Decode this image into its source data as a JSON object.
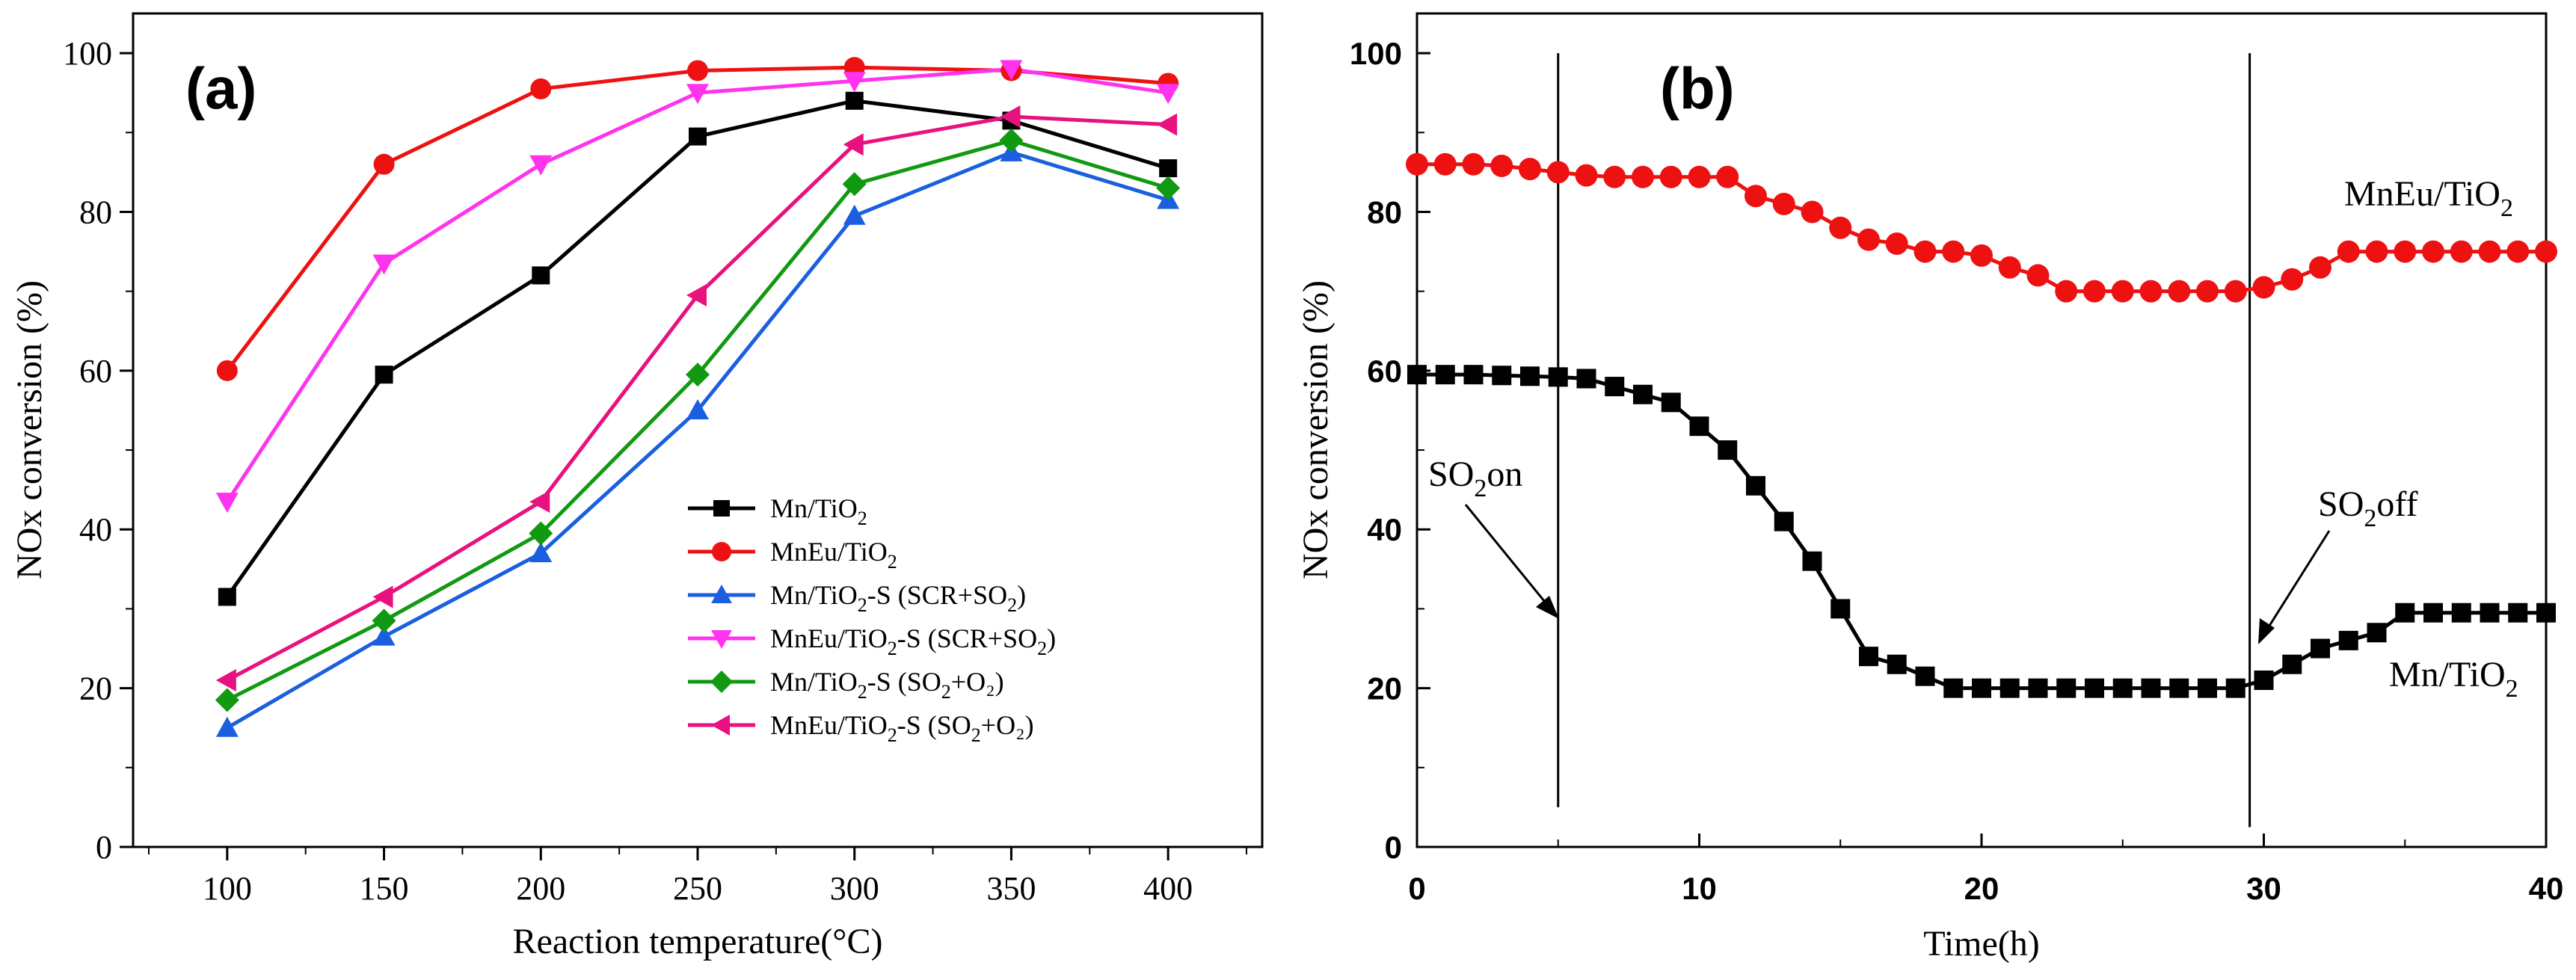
{
  "chart_data": [
    {
      "type": "line",
      "panel_label": "(a)",
      "xlabel": "Reaction temperature(°C)",
      "ylabel": "NOx conversion (%)",
      "xlim": [
        70,
        430
      ],
      "ylim": [
        0,
        105
      ],
      "x_ticks": [
        "100",
        "150",
        "200",
        "250",
        "300",
        "350",
        "400"
      ],
      "y_ticks": [
        "0",
        "20",
        "40",
        "60",
        "80",
        "100"
      ],
      "legend_position": "center-right",
      "x": [
        100,
        150,
        200,
        250,
        300,
        350,
        400
      ],
      "series": [
        {
          "name": "Mn/TiO2",
          "label": "Mn/TiO",
          "sub": "2",
          "tail": "",
          "sub2": "",
          "end": "",
          "color": "#000000",
          "marker": "square",
          "values": [
            31.5,
            59.5,
            72,
            89.5,
            94,
            91.5,
            85.5
          ]
        },
        {
          "name": "MnEu/TiO2",
          "label": "MnEu/TiO",
          "sub": "2",
          "tail": "",
          "sub2": "",
          "end": "",
          "color": "#ee1111",
          "marker": "circle",
          "values": [
            60,
            86,
            95.5,
            97.8,
            98.2,
            97.8,
            96.2
          ]
        },
        {
          "name": "Mn/TiO2-S (SCR+SO2)",
          "label": "Mn/TiO",
          "sub": "2",
          "tail": "-S (SCR+SO",
          "sub2": "2",
          "end": ")",
          "color": "#1a5fe0",
          "marker": "triangle-up",
          "values": [
            15,
            26.5,
            37,
            55,
            79.5,
            87.5,
            81.5
          ]
        },
        {
          "name": "MnEu/TiO2-S (SCR+SO2)",
          "label": "MnEu/TiO",
          "sub": "2",
          "tail": "-S (SCR+SO",
          "sub2": "2",
          "end": ")",
          "color": "#ff33ee",
          "marker": "triangle-down",
          "values": [
            43.5,
            73.5,
            86,
            95,
            96.5,
            98,
            95
          ]
        },
        {
          "name": "Mn/TiO2-S (SO2+O2)",
          "label": "Mn/TiO",
          "sub": "2",
          "tail": "-S (SO",
          "sub2": "2",
          "end": "+O₂)",
          "color": "#119911",
          "marker": "diamond",
          "values": [
            18.5,
            28.5,
            39.5,
            59.5,
            83.5,
            89,
            83
          ]
        },
        {
          "name": "MnEu/TiO2-S (SO2+O2)",
          "label": "MnEu/TiO",
          "sub": "2",
          "tail": "-S (SO",
          "sub2": "2",
          "end": "+O₂)",
          "color": "#e8117f",
          "marker": "triangle-left",
          "values": [
            21,
            31.5,
            43.5,
            69.5,
            88.5,
            92,
            91
          ]
        }
      ]
    },
    {
      "type": "line",
      "panel_label": "(b)",
      "xlabel": "Time(h)",
      "ylabel": "NOx conversion (%)",
      "xlim": [
        0,
        40
      ],
      "ylim": [
        0,
        105
      ],
      "x_ticks": [
        "0",
        "10",
        "20",
        "30",
        "40"
      ],
      "y_ticks": [
        "0",
        "20",
        "40",
        "60",
        "80",
        "100"
      ],
      "annotations": {
        "so2_on": {
          "text": "SO",
          "sub": "2",
          "tail": "on",
          "x": 5
        },
        "so2_off": {
          "text": "SO",
          "sub": "2",
          "tail": "off",
          "x": 29.5
        }
      },
      "series": [
        {
          "name": "MnEu/TiO2",
          "label": "MnEu/TiO",
          "sub": "2",
          "color": "#ee1111",
          "marker": "circle",
          "x": [
            0,
            1,
            2,
            3,
            4,
            5,
            6,
            7,
            8,
            9,
            10,
            11,
            12,
            13,
            14,
            15,
            16,
            17,
            18,
            19,
            20,
            21,
            22,
            23,
            24,
            25,
            26,
            27,
            28,
            29,
            30,
            31,
            32,
            33,
            34,
            35,
            36,
            37,
            38,
            39,
            40
          ],
          "values": [
            86,
            86,
            86,
            85.8,
            85.4,
            85,
            84.6,
            84.4,
            84.4,
            84.4,
            84.4,
            84.4,
            82,
            81,
            80,
            78,
            76.5,
            76,
            75,
            75,
            74.5,
            73,
            72,
            70,
            70,
            70,
            70,
            70,
            70,
            70,
            70.5,
            71.5,
            73,
            75,
            75,
            75,
            75,
            75,
            75,
            75,
            75
          ]
        },
        {
          "name": "Mn/TiO2",
          "label": "Mn/TiO",
          "sub": "2",
          "color": "#000000",
          "marker": "square",
          "x": [
            0,
            1,
            2,
            3,
            4,
            5,
            6,
            7,
            8,
            9,
            10,
            11,
            12,
            13,
            14,
            15,
            16,
            17,
            18,
            19,
            20,
            21,
            22,
            23,
            24,
            25,
            26,
            27,
            28,
            29,
            30,
            31,
            32,
            33,
            34,
            35,
            36,
            37,
            38,
            39,
            40
          ],
          "values": [
            59.5,
            59.5,
            59.5,
            59.4,
            59.3,
            59.2,
            59,
            58,
            57,
            56,
            53,
            50,
            45.5,
            41,
            36,
            30,
            24,
            23,
            21.5,
            20,
            20,
            20,
            20,
            20,
            20,
            20,
            20,
            20,
            20,
            20,
            21,
            23,
            25,
            26,
            27,
            29.5,
            29.5,
            29.5,
            29.5,
            29.5,
            29.5
          ]
        }
      ]
    }
  ]
}
